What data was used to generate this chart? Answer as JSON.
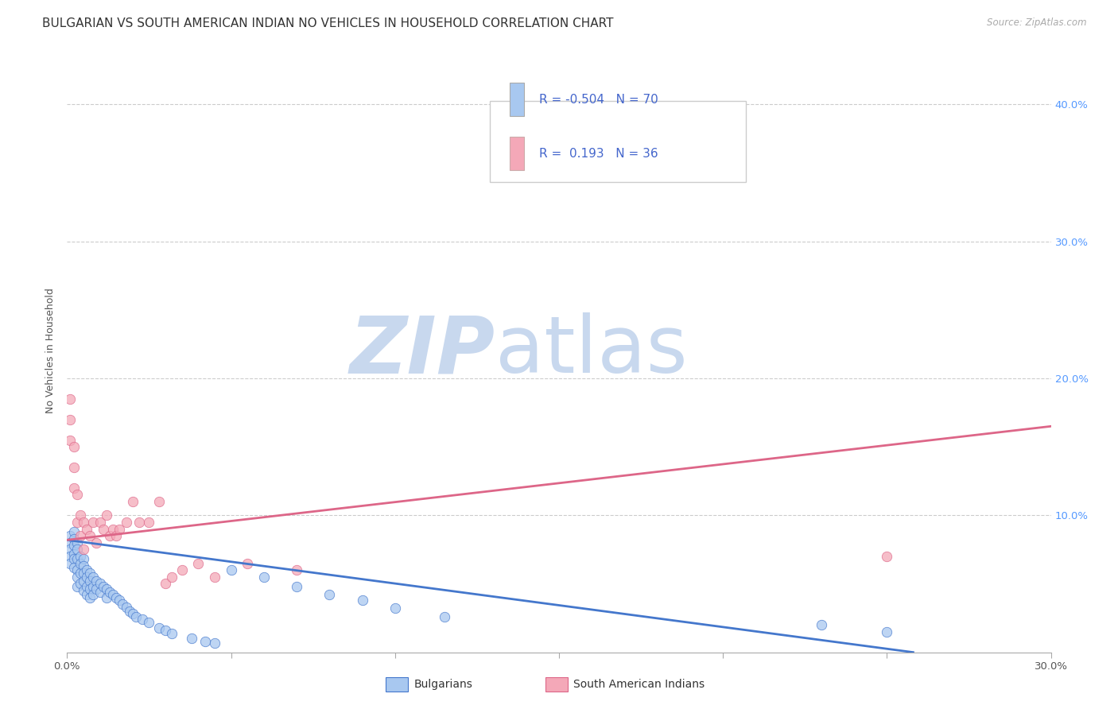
{
  "title": "BULGARIAN VS SOUTH AMERICAN INDIAN NO VEHICLES IN HOUSEHOLD CORRELATION CHART",
  "source": "Source: ZipAtlas.com",
  "ylabel": "No Vehicles in Household",
  "xlim": [
    0.0,
    0.3
  ],
  "ylim": [
    0.0,
    0.44
  ],
  "xticks": [
    0.0,
    0.05,
    0.1,
    0.15,
    0.2,
    0.25,
    0.3
  ],
  "xticklabels": [
    "0.0%",
    "",
    "",
    "",
    "",
    "",
    "30.0%"
  ],
  "yticks_right": [
    0.1,
    0.2,
    0.3,
    0.4
  ],
  "yticklabels_right": [
    "10.0%",
    "20.0%",
    "30.0%",
    "40.0%"
  ],
  "grid_color": "#cccccc",
  "background_color": "#ffffff",
  "watermark_zip": "ZIP",
  "watermark_atlas": "atlas",
  "watermark_color_zip": "#c8d8ee",
  "watermark_color_atlas": "#c8d8ee",
  "legend_R1": "-0.504",
  "legend_N1": "70",
  "legend_R2": " 0.193",
  "legend_N2": "36",
  "color_blue": "#a8c8f0",
  "color_pink": "#f4a8b8",
  "line_blue": "#4477cc",
  "line_pink": "#dd6688",
  "label_bulgarians": "Bulgarians",
  "label_sai": "South American Indians",
  "bulgarians_x": [
    0.001,
    0.001,
    0.001,
    0.001,
    0.001,
    0.002,
    0.002,
    0.002,
    0.002,
    0.002,
    0.002,
    0.003,
    0.003,
    0.003,
    0.003,
    0.003,
    0.003,
    0.004,
    0.004,
    0.004,
    0.004,
    0.005,
    0.005,
    0.005,
    0.005,
    0.005,
    0.006,
    0.006,
    0.006,
    0.006,
    0.007,
    0.007,
    0.007,
    0.007,
    0.008,
    0.008,
    0.008,
    0.009,
    0.009,
    0.01,
    0.01,
    0.011,
    0.012,
    0.012,
    0.013,
    0.014,
    0.015,
    0.016,
    0.017,
    0.018,
    0.019,
    0.02,
    0.021,
    0.023,
    0.025,
    0.028,
    0.03,
    0.032,
    0.038,
    0.042,
    0.045,
    0.05,
    0.06,
    0.07,
    0.08,
    0.09,
    0.1,
    0.115,
    0.23,
    0.25
  ],
  "bulgarians_y": [
    0.085,
    0.08,
    0.075,
    0.07,
    0.065,
    0.088,
    0.083,
    0.078,
    0.072,
    0.068,
    0.062,
    0.08,
    0.075,
    0.068,
    0.06,
    0.055,
    0.048,
    0.07,
    0.065,
    0.058,
    0.05,
    0.068,
    0.063,
    0.058,
    0.052,
    0.045,
    0.06,
    0.055,
    0.048,
    0.042,
    0.058,
    0.052,
    0.046,
    0.04,
    0.055,
    0.048,
    0.042,
    0.052,
    0.046,
    0.05,
    0.044,
    0.048,
    0.046,
    0.04,
    0.044,
    0.042,
    0.04,
    0.038,
    0.035,
    0.033,
    0.03,
    0.028,
    0.026,
    0.024,
    0.022,
    0.018,
    0.016,
    0.014,
    0.01,
    0.008,
    0.007,
    0.06,
    0.055,
    0.048,
    0.042,
    0.038,
    0.032,
    0.026,
    0.02,
    0.015
  ],
  "sai_x": [
    0.001,
    0.001,
    0.001,
    0.002,
    0.002,
    0.002,
    0.003,
    0.003,
    0.004,
    0.004,
    0.005,
    0.005,
    0.006,
    0.007,
    0.008,
    0.009,
    0.01,
    0.011,
    0.012,
    0.013,
    0.014,
    0.015,
    0.016,
    0.018,
    0.02,
    0.022,
    0.025,
    0.028,
    0.03,
    0.032,
    0.035,
    0.04,
    0.045,
    0.055,
    0.07,
    0.25
  ],
  "sai_y": [
    0.185,
    0.17,
    0.155,
    0.15,
    0.135,
    0.12,
    0.115,
    0.095,
    0.1,
    0.085,
    0.095,
    0.075,
    0.09,
    0.085,
    0.095,
    0.08,
    0.095,
    0.09,
    0.1,
    0.085,
    0.09,
    0.085,
    0.09,
    0.095,
    0.11,
    0.095,
    0.095,
    0.11,
    0.05,
    0.055,
    0.06,
    0.065,
    0.055,
    0.065,
    0.06,
    0.07
  ],
  "blue_line_x": [
    0.0,
    0.258
  ],
  "blue_line_y": [
    0.082,
    0.0
  ],
  "pink_line_x": [
    0.0,
    0.3
  ],
  "pink_line_y": [
    0.082,
    0.165
  ],
  "title_fontsize": 11,
  "axis_label_fontsize": 9,
  "tick_fontsize": 9.5,
  "marker_size": 80
}
